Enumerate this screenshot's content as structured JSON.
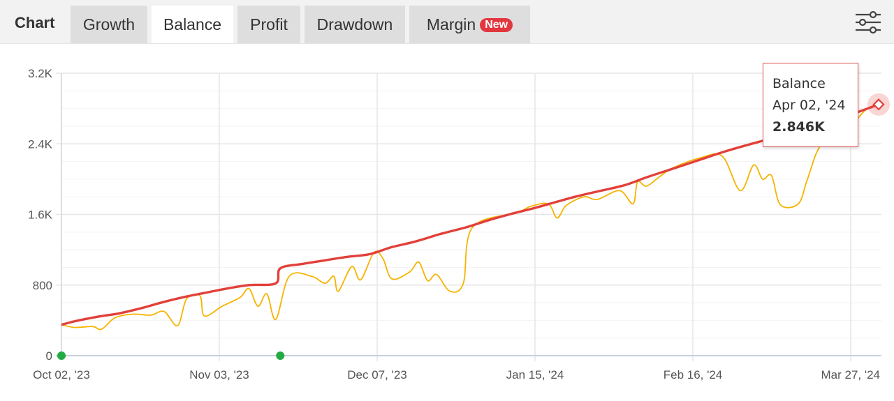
{
  "header": {
    "title": "Chart",
    "tabs": [
      {
        "label": "Growth",
        "active": false
      },
      {
        "label": "Balance",
        "active": true
      },
      {
        "label": "Profit",
        "active": false
      },
      {
        "label": "Drawdown",
        "active": false
      },
      {
        "label": "Margin",
        "active": false,
        "badge": "New"
      }
    ],
    "settings_icon": "sliders-icon"
  },
  "colors": {
    "balance_line": "#e2403a",
    "equity_line": "#f5b400",
    "grid": "#e6e6e6",
    "marker": "#22aa44",
    "badge": "#e2373f"
  },
  "tooltip": {
    "series": "Balance",
    "date": "Apr 02, '24",
    "value": "2.846K"
  },
  "chart_data": {
    "type": "line",
    "x_range": [
      "2023-10-02",
      "2024-04-02"
    ],
    "y_range": [
      0,
      3200
    ],
    "y_ticks": [
      "0",
      "800",
      "1.6K",
      "2.4K",
      "3.2K"
    ],
    "x_ticks": [
      "Oct 02, '23",
      "Nov 03, '23",
      "Dec 07, '23",
      "Jan 15, '24",
      "Feb 16, '24",
      "Mar 27, '24"
    ],
    "grid": true,
    "series": [
      {
        "key": "balance",
        "name": "Balance",
        "points": [
          [
            "2023-10-02",
            350
          ],
          [
            "2023-10-05",
            390
          ],
          [
            "2023-10-10",
            440
          ],
          [
            "2023-10-15",
            480
          ],
          [
            "2023-10-20",
            540
          ],
          [
            "2023-10-25",
            610
          ],
          [
            "2023-10-30",
            670
          ],
          [
            "2023-11-03",
            710
          ],
          [
            "2023-11-08",
            760
          ],
          [
            "2023-11-13",
            800
          ],
          [
            "2023-11-19",
            820
          ],
          [
            "2023-11-20",
            990
          ],
          [
            "2023-11-25",
            1040
          ],
          [
            "2023-11-30",
            1080
          ],
          [
            "2023-12-05",
            1120
          ],
          [
            "2023-12-10",
            1150
          ],
          [
            "2023-12-15",
            1230
          ],
          [
            "2023-12-20",
            1290
          ],
          [
            "2023-12-26",
            1380
          ],
          [
            "2024-01-01",
            1460
          ],
          [
            "2024-01-06",
            1540
          ],
          [
            "2024-01-11",
            1610
          ],
          [
            "2024-01-15",
            1660
          ],
          [
            "2024-01-20",
            1730
          ],
          [
            "2024-01-25",
            1800
          ],
          [
            "2024-01-30",
            1860
          ],
          [
            "2024-02-05",
            1930
          ],
          [
            "2024-02-10",
            2020
          ],
          [
            "2024-02-16",
            2120
          ],
          [
            "2024-02-22",
            2220
          ],
          [
            "2024-02-28",
            2320
          ],
          [
            "2024-03-06",
            2420
          ],
          [
            "2024-03-12",
            2500
          ],
          [
            "2024-03-18",
            2590
          ],
          [
            "2024-03-25",
            2700
          ],
          [
            "2024-04-02",
            2846
          ]
        ]
      },
      {
        "key": "equity",
        "name": "",
        "points": [
          [
            "2023-10-02",
            350
          ],
          [
            "2023-10-05",
            320
          ],
          [
            "2023-10-09",
            330
          ],
          [
            "2023-10-11",
            300
          ],
          [
            "2023-10-14",
            430
          ],
          [
            "2023-10-18",
            470
          ],
          [
            "2023-10-22",
            460
          ],
          [
            "2023-10-25",
            500
          ],
          [
            "2023-10-28",
            340
          ],
          [
            "2023-10-30",
            640
          ],
          [
            "2023-11-02",
            680
          ],
          [
            "2023-11-03",
            450
          ],
          [
            "2023-11-07",
            560
          ],
          [
            "2023-11-11",
            660
          ],
          [
            "2023-11-13",
            760
          ],
          [
            "2023-11-15",
            560
          ],
          [
            "2023-11-17",
            700
          ],
          [
            "2023-11-19",
            410
          ],
          [
            "2023-11-22",
            900
          ],
          [
            "2023-11-27",
            900
          ],
          [
            "2023-11-30",
            820
          ],
          [
            "2023-12-02",
            900
          ],
          [
            "2023-12-03",
            730
          ],
          [
            "2023-12-06",
            1010
          ],
          [
            "2023-12-08",
            860
          ],
          [
            "2023-12-11",
            1170
          ],
          [
            "2023-12-13",
            1100
          ],
          [
            "2023-12-15",
            870
          ],
          [
            "2023-12-19",
            950
          ],
          [
            "2023-12-21",
            1060
          ],
          [
            "2023-12-23",
            850
          ],
          [
            "2023-12-25",
            920
          ],
          [
            "2023-12-28",
            730
          ],
          [
            "2023-12-31",
            820
          ],
          [
            "2024-01-02",
            1450
          ],
          [
            "2024-01-12",
            1620
          ],
          [
            "2024-01-15",
            1690
          ],
          [
            "2024-01-19",
            1720
          ],
          [
            "2024-01-21",
            1560
          ],
          [
            "2024-01-23",
            1700
          ],
          [
            "2024-01-27",
            1800
          ],
          [
            "2024-01-30",
            1770
          ],
          [
            "2024-02-04",
            1870
          ],
          [
            "2024-02-07",
            1720
          ],
          [
            "2024-02-08",
            1970
          ],
          [
            "2024-02-10",
            1920
          ],
          [
            "2024-02-13",
            2030
          ],
          [
            "2024-02-16",
            2130
          ],
          [
            "2024-02-22",
            2240
          ],
          [
            "2024-02-27",
            2260
          ],
          [
            "2024-03-02",
            1870
          ],
          [
            "2024-03-05",
            2160
          ],
          [
            "2024-03-07",
            2000
          ],
          [
            "2024-03-09",
            2040
          ],
          [
            "2024-03-11",
            1710
          ],
          [
            "2024-03-15",
            1720
          ],
          [
            "2024-03-17",
            1990
          ],
          [
            "2024-03-20",
            2380
          ],
          [
            "2024-03-25",
            2500
          ],
          [
            "2024-03-30",
            2780
          ],
          [
            "2024-04-02",
            2846
          ]
        ]
      }
    ],
    "markers": [
      {
        "date": "2023-10-02",
        "value": 0
      },
      {
        "date": "2023-11-20",
        "value": 0
      }
    ]
  }
}
